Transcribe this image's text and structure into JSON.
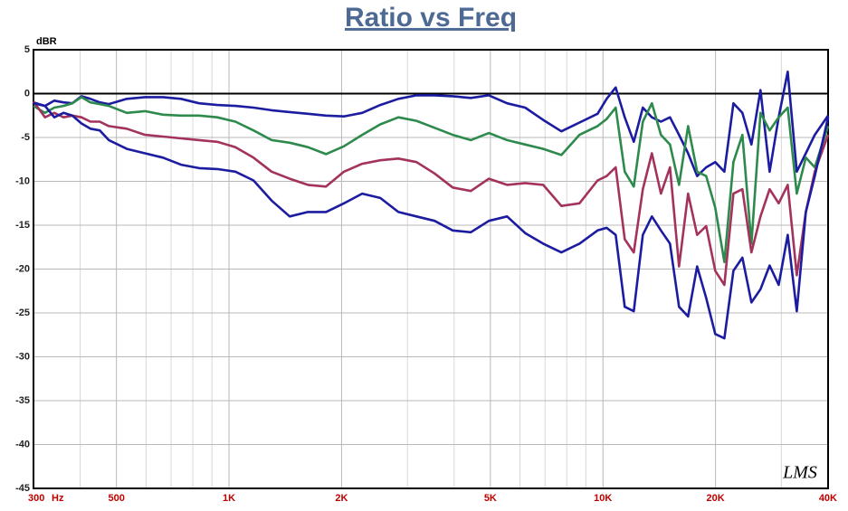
{
  "chart_data": {
    "type": "line",
    "title": "Ratio vs Freq",
    "ylabel": "dBR",
    "xlabel": "Hz",
    "log_x": true,
    "grid": true,
    "xlim": [
      300,
      40000
    ],
    "ylim": [
      -45,
      5
    ],
    "xticks": [
      300,
      500,
      {
        "value": 1000,
        "label": "1K"
      },
      {
        "value": 2000,
        "label": "2K"
      },
      {
        "value": 5000,
        "label": "5K"
      },
      {
        "value": 10000,
        "label": "10K"
      },
      {
        "value": 20000,
        "label": "20K"
      },
      {
        "value": 40000,
        "label": "40K"
      }
    ],
    "xgrid": [
      400,
      600,
      700,
      800,
      900,
      3000,
      4000,
      6000,
      7000,
      8000,
      9000,
      30000
    ],
    "yticks": [
      5,
      0,
      -5,
      -10,
      -15,
      -20,
      -25,
      -30,
      -35,
      -40,
      -45
    ],
    "x": [
      300,
      322,
      341,
      361,
      381,
      403,
      426,
      451,
      477,
      533,
      596,
      666,
      744,
      832,
      930,
      1040,
      1163,
      1300,
      1453,
      1625,
      1817,
      2030,
      2270,
      2538,
      2838,
      3172,
      3546,
      3965,
      4432,
      4955,
      5540,
      6193,
      6923,
      7740,
      8653,
      9674,
      10230,
      10815,
      11435,
      12090,
      12783,
      13517,
      14291,
      15110,
      15977,
      16892,
      17861,
      18884,
      19966,
      21116,
      22325,
      23603,
      24956,
      26387,
      27900,
      29500,
      31190,
      32990,
      34870,
      36860,
      40000
    ],
    "series": [
      {
        "color": "#1c1ca0",
        "values": [
          -1,
          -1.4,
          -0.8,
          -1,
          -1.1,
          -0.3,
          -0.6,
          -1,
          -1.2,
          -0.6,
          -0.4,
          -0.4,
          -0.6,
          -1.1,
          -1.3,
          -1.4,
          -1.6,
          -1.9,
          -2.1,
          -2.3,
          -2.5,
          -2.6,
          -2.2,
          -1.3,
          -0.6,
          -0.2,
          -0.2,
          -0.3,
          -0.5,
          -0.2,
          -1.1,
          -1.6,
          -3,
          -4.3,
          -3.3,
          -2.3,
          -0.6,
          0.7,
          -2.7,
          -5.5,
          -1.6,
          -2.7,
          -3.2,
          -2.7,
          -4.7,
          -6.8,
          -9.4,
          -8.4,
          -7.8,
          -8.9,
          -1.1,
          -2.2,
          -5.8,
          0.4,
          -8.9,
          -2.7,
          2.5,
          -8.9,
          -6.8,
          -4.7,
          -2.5
        ]
      },
      {
        "color": "#2e8a4c",
        "values": [
          -1.4,
          -2.2,
          -1.6,
          -1.4,
          -1.1,
          -0.4,
          -1,
          -1.2,
          -1.4,
          -2.2,
          -2,
          -2.4,
          -2.5,
          -2.5,
          -2.7,
          -3.2,
          -4.2,
          -5.3,
          -5.6,
          -6.1,
          -6.9,
          -6,
          -4.7,
          -3.5,
          -2.7,
          -3.1,
          -3.9,
          -4.7,
          -5.3,
          -4.5,
          -5.3,
          -5.8,
          -6.3,
          -7,
          -4.7,
          -3.7,
          -2.9,
          -1.6,
          -8.9,
          -10.6,
          -3.2,
          -1.1,
          -4.7,
          -5.8,
          -10.4,
          -3.7,
          -8.9,
          -9.4,
          -13,
          -19.2,
          -7.8,
          -4.7,
          -17.1,
          -2.2,
          -4.2,
          -2.7,
          -1.6,
          -11.4,
          -7.3,
          -8.4,
          -3.7
        ]
      },
      {
        "color": "#a3325c",
        "values": [
          -0.9,
          -2.7,
          -2.2,
          -2.7,
          -2.5,
          -2.7,
          -3.2,
          -3.2,
          -3.7,
          -4,
          -4.7,
          -4.9,
          -5.1,
          -5.3,
          -5.5,
          -6.1,
          -7.3,
          -8.9,
          -9.7,
          -10.4,
          -10.6,
          -8.9,
          -8,
          -7.6,
          -7.4,
          -7.8,
          -9.1,
          -10.7,
          -11.1,
          -9.7,
          -10.4,
          -10.2,
          -10.4,
          -12.8,
          -12.5,
          -9.9,
          -9.4,
          -8.4,
          -16.6,
          -18.1,
          -10.9,
          -6.8,
          -11.4,
          -8.4,
          -19.7,
          -11.4,
          -16.1,
          -15.1,
          -20.2,
          -21.8,
          -11.4,
          -10.9,
          -18.1,
          -14,
          -10.9,
          -12.5,
          -10.4,
          -20.7,
          -13.5,
          -8.9,
          -4.7
        ]
      },
      {
        "color": "#1c1ca0",
        "values": [
          -1.1,
          -1.4,
          -2.7,
          -2.2,
          -2.5,
          -3.4,
          -4,
          -4.2,
          -5.3,
          -6.3,
          -6.8,
          -7.3,
          -8.1,
          -8.5,
          -8.6,
          -8.9,
          -9.9,
          -12.2,
          -14,
          -13.5,
          -13.5,
          -12.5,
          -11.4,
          -11.9,
          -13.5,
          -14,
          -14.5,
          -15.6,
          -15.8,
          -14.5,
          -14,
          -15.9,
          -17.1,
          -18.1,
          -17.1,
          -15.6,
          -15.3,
          -16.1,
          -24.3,
          -24.8,
          -16.1,
          -14,
          -15.6,
          -17.1,
          -24.3,
          -25.4,
          -19.7,
          -23.3,
          -27.4,
          -27.9,
          -20.2,
          -18.7,
          -23.8,
          -22.3,
          -19.6,
          -21.8,
          -16.1,
          -24.8,
          -13.5,
          -9.4,
          -2.7
        ]
      }
    ]
  },
  "watermark": "LMS"
}
